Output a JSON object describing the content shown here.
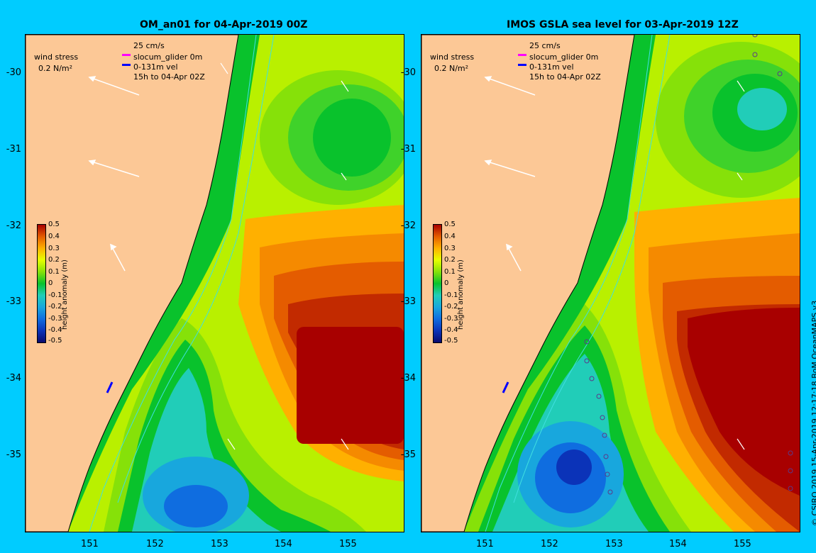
{
  "left_panel": {
    "title": "OM_an01 for 04-Apr-2019 00Z",
    "wind_label": "wind stress",
    "wind_ref": "0.2 N/m²",
    "current_ref": "25 cm/s",
    "glider_legend": "slocum_glider 0m",
    "vel_legend": "0-131m vel",
    "time_legend": "15h to 04-Apr 02Z"
  },
  "right_panel": {
    "title": "IMOS GSLA sea level  for 03-Apr-2019 12Z",
    "wind_label": "wind stress",
    "wind_ref": "0.2 N/m²",
    "current_ref": "25 cm/s",
    "glider_legend": "slocum_glider 0m",
    "vel_legend": "0-131m vel",
    "time_legend": "15h to 04-Apr 02Z"
  },
  "latitude_labels": [
    "-30",
    "-31",
    "-32",
    "-33",
    "-34",
    "-35"
  ],
  "longitude_labels": [
    "151",
    "152",
    "153",
    "154",
    "155"
  ],
  "colorbar": {
    "label": "height anomaly (m)",
    "ticks": [
      "0.5",
      "0.4",
      "0.3",
      "0.2",
      "0.1",
      "0",
      "-0.1",
      "-0.2",
      "-0.3",
      "-0.4",
      "-0.5"
    ]
  },
  "credit": "© CSIRO 2019   15-Apr-2019 12:17:18 BoM OceanMAPS v3",
  "colors": {
    "frame_background": "#00ccff",
    "land": "#fcc896",
    "contour": "#40e0e0",
    "glider_track": "#ff00ff",
    "velocity_vector": "#0000ff",
    "colormap": [
      "#0a0a6e",
      "#0b33b8",
      "#0f6de0",
      "#18a7dd",
      "#21cdb8",
      "#09c22c",
      "#86e109",
      "#e6ff00",
      "#ffb000",
      "#e45c00",
      "#a80000"
    ]
  }
}
